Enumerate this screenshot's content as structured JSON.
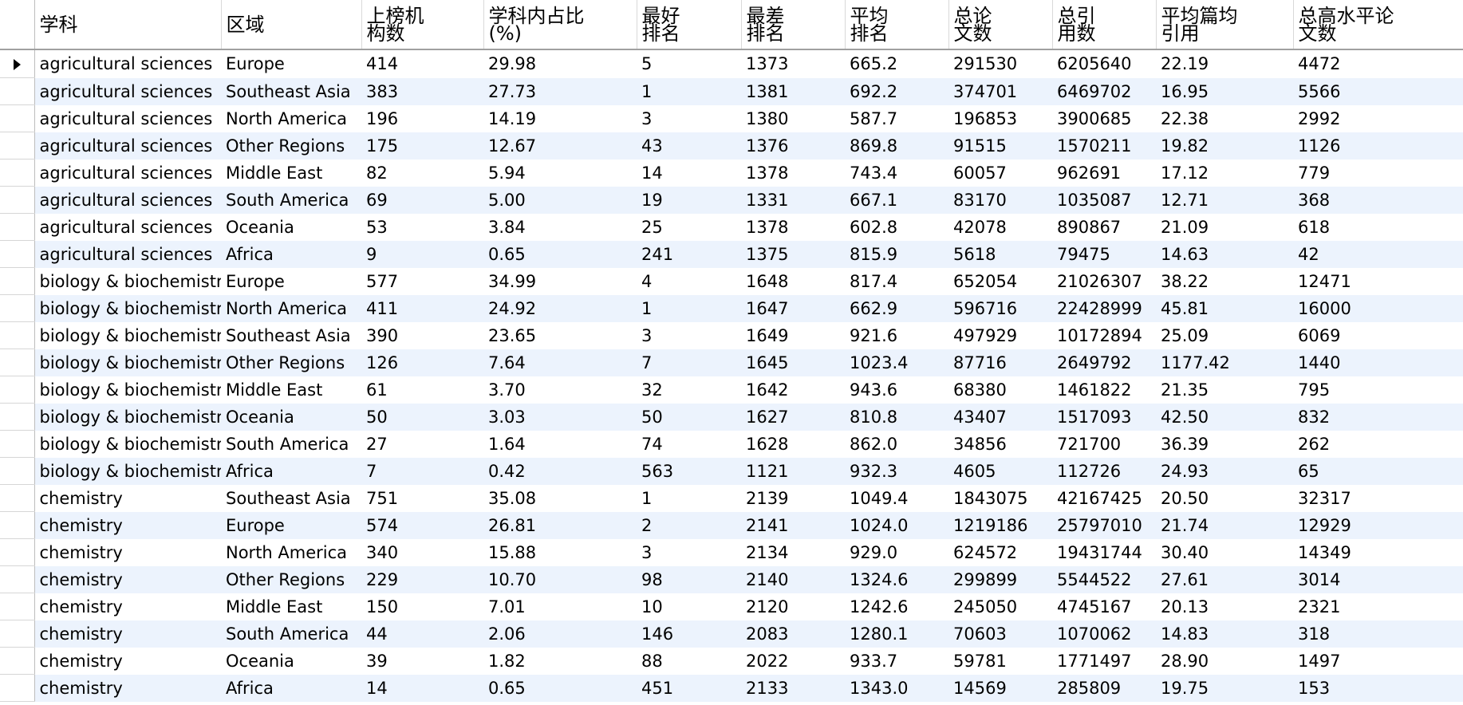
{
  "grid": {
    "columns": [
      [
        "学科"
      ],
      [
        "区域"
      ],
      [
        "上榜机",
        "构数"
      ],
      [
        "学科内占比",
        "(%)"
      ],
      [
        "最好",
        "排名"
      ],
      [
        "最差",
        "排名"
      ],
      [
        "平均",
        "排名"
      ],
      [
        "总论",
        "文数"
      ],
      [
        "总引",
        "用数"
      ],
      [
        "平均篇均",
        "引用"
      ],
      [
        "总高水平论",
        "文数"
      ]
    ],
    "current_row_indicator": "current-row-arrow-icon",
    "colors": {
      "alt_row": "#ecf3fd",
      "row": "#ffffff",
      "header_border": "#a0a0a0"
    },
    "rows": [
      [
        "agricultural sciences",
        "Europe",
        "414",
        "29.98",
        "5",
        "1373",
        "665.2",
        "291530",
        "6205640",
        "22.19",
        "4472"
      ],
      [
        "agricultural sciences",
        "Southeast Asia",
        "383",
        "27.73",
        "1",
        "1381",
        "692.2",
        "374701",
        "6469702",
        "16.95",
        "5566"
      ],
      [
        "agricultural sciences",
        "North America",
        "196",
        "14.19",
        "3",
        "1380",
        "587.7",
        "196853",
        "3900685",
        "22.38",
        "2992"
      ],
      [
        "agricultural sciences",
        "Other Regions",
        "175",
        "12.67",
        "43",
        "1376",
        "869.8",
        "91515",
        "1570211",
        "19.82",
        "1126"
      ],
      [
        "agricultural sciences",
        "Middle East",
        "82",
        "5.94",
        "14",
        "1378",
        "743.4",
        "60057",
        "962691",
        "17.12",
        "779"
      ],
      [
        "agricultural sciences",
        "South America",
        "69",
        "5.00",
        "19",
        "1331",
        "667.1",
        "83170",
        "1035087",
        "12.71",
        "368"
      ],
      [
        "agricultural sciences",
        "Oceania",
        "53",
        "3.84",
        "25",
        "1378",
        "602.8",
        "42078",
        "890867",
        "21.09",
        "618"
      ],
      [
        "agricultural sciences",
        "Africa",
        "9",
        "0.65",
        "241",
        "1375",
        "815.9",
        "5618",
        "79475",
        "14.63",
        "42"
      ],
      [
        "biology & biochemistry",
        "Europe",
        "577",
        "34.99",
        "4",
        "1648",
        "817.4",
        "652054",
        "21026307",
        "38.22",
        "12471"
      ],
      [
        "biology & biochemistry",
        "North America",
        "411",
        "24.92",
        "1",
        "1647",
        "662.9",
        "596716",
        "22428999",
        "45.81",
        "16000"
      ],
      [
        "biology & biochemistry",
        "Southeast Asia",
        "390",
        "23.65",
        "3",
        "1649",
        "921.6",
        "497929",
        "10172894",
        "25.09",
        "6069"
      ],
      [
        "biology & biochemistry",
        "Other Regions",
        "126",
        "7.64",
        "7",
        "1645",
        "1023.4",
        "87716",
        "2649792",
        "1177.42",
        "1440"
      ],
      [
        "biology & biochemistry",
        "Middle East",
        "61",
        "3.70",
        "32",
        "1642",
        "943.6",
        "68380",
        "1461822",
        "21.35",
        "795"
      ],
      [
        "biology & biochemistry",
        "Oceania",
        "50",
        "3.03",
        "50",
        "1627",
        "810.8",
        "43407",
        "1517093",
        "42.50",
        "832"
      ],
      [
        "biology & biochemistry",
        "South America",
        "27",
        "1.64",
        "74",
        "1628",
        "862.0",
        "34856",
        "721700",
        "36.39",
        "262"
      ],
      [
        "biology & biochemistry",
        "Africa",
        "7",
        "0.42",
        "563",
        "1121",
        "932.3",
        "4605",
        "112726",
        "24.93",
        "65"
      ],
      [
        "chemistry",
        "Southeast Asia",
        "751",
        "35.08",
        "1",
        "2139",
        "1049.4",
        "1843075",
        "42167425",
        "20.50",
        "32317"
      ],
      [
        "chemistry",
        "Europe",
        "574",
        "26.81",
        "2",
        "2141",
        "1024.0",
        "1219186",
        "25797010",
        "21.74",
        "12929"
      ],
      [
        "chemistry",
        "North America",
        "340",
        "15.88",
        "3",
        "2134",
        "929.0",
        "624572",
        "19431744",
        "30.40",
        "14349"
      ],
      [
        "chemistry",
        "Other Regions",
        "229",
        "10.70",
        "98",
        "2140",
        "1324.6",
        "299899",
        "5544522",
        "27.61",
        "3014"
      ],
      [
        "chemistry",
        "Middle East",
        "150",
        "7.01",
        "10",
        "2120",
        "1242.6",
        "245050",
        "4745167",
        "20.13",
        "2321"
      ],
      [
        "chemistry",
        "South America",
        "44",
        "2.06",
        "146",
        "2083",
        "1280.1",
        "70603",
        "1070062",
        "14.83",
        "318"
      ],
      [
        "chemistry",
        "Oceania",
        "39",
        "1.82",
        "88",
        "2022",
        "933.7",
        "59781",
        "1771497",
        "28.90",
        "1497"
      ],
      [
        "chemistry",
        "Africa",
        "14",
        "0.65",
        "451",
        "2133",
        "1343.0",
        "14569",
        "285809",
        "19.75",
        "153"
      ]
    ]
  }
}
